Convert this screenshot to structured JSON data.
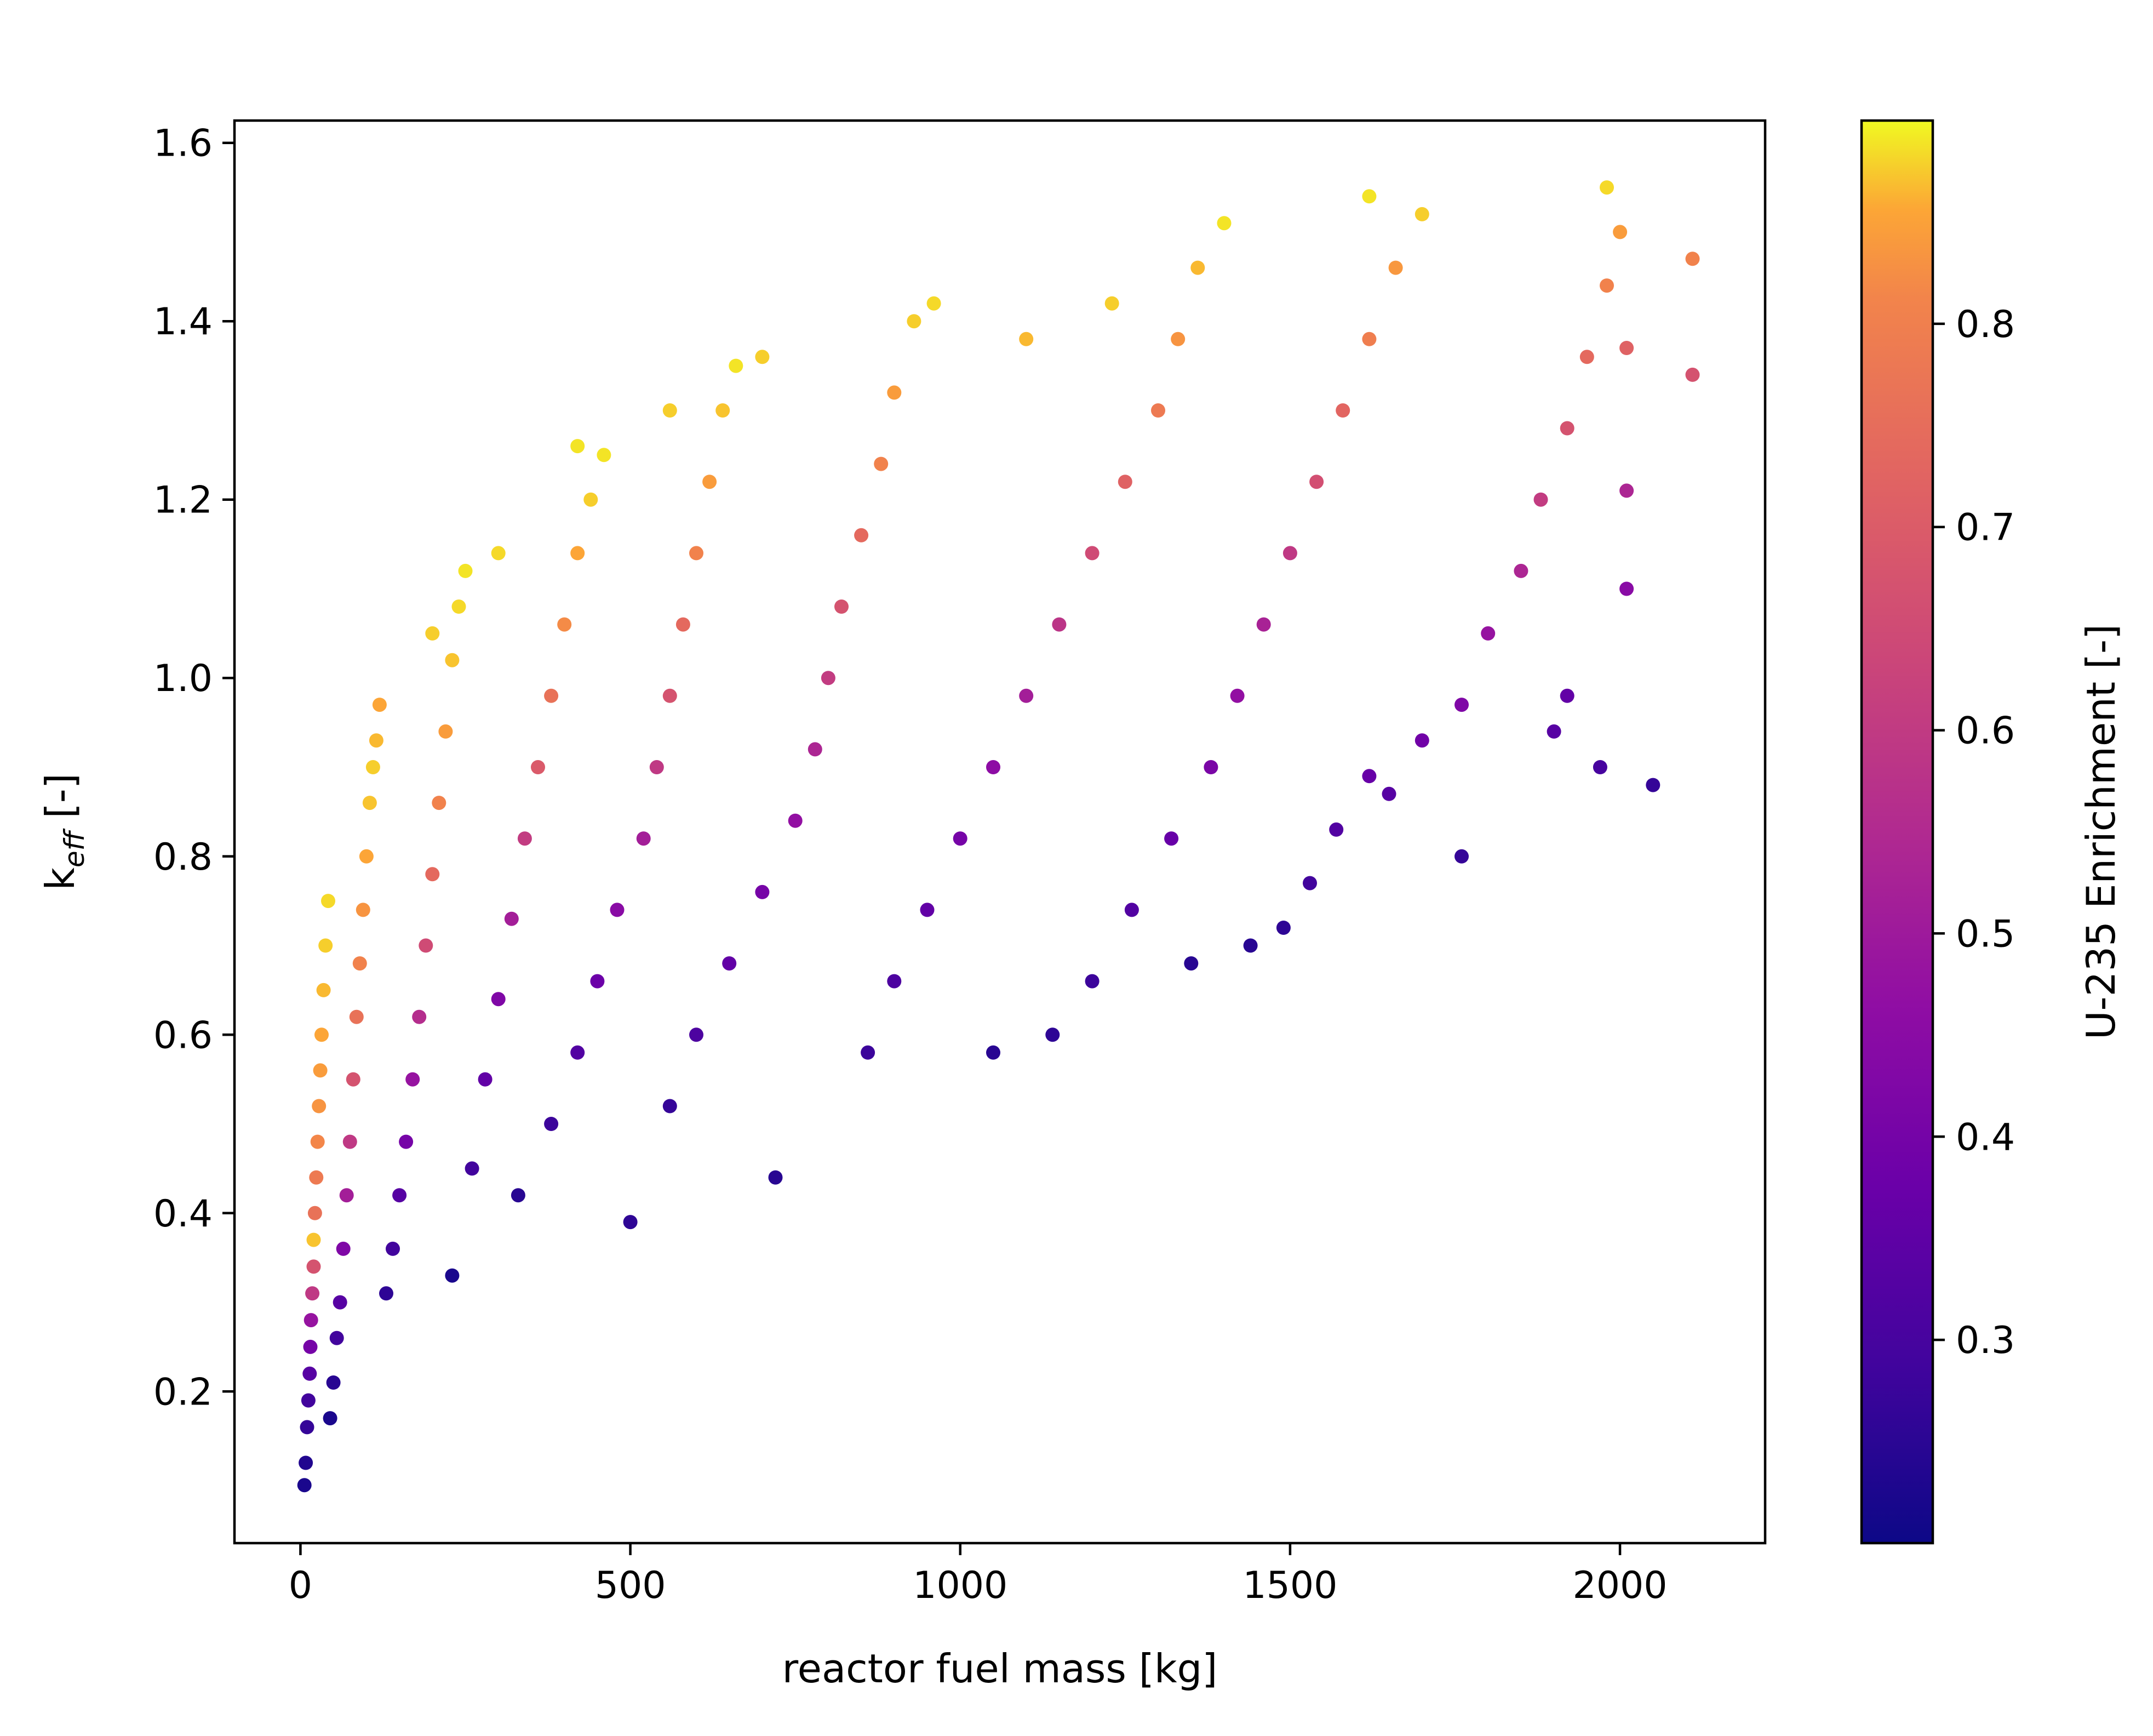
{
  "chart_data": {
    "type": "scatter",
    "title": "",
    "xlabel": "reactor fuel mass [kg]",
    "ylabel": {
      "base": "k",
      "subscript": "eff",
      "suffix": " [-]"
    },
    "xlim": [
      -100,
      2220
    ],
    "ylim": [
      0.03,
      1.625
    ],
    "xticks": [
      0,
      500,
      1000,
      1500,
      2000
    ],
    "xtick_labels": [
      "0",
      "500",
      "1000",
      "1500",
      "2000"
    ],
    "yticks": [
      0.2,
      0.4,
      0.6,
      0.8,
      1.0,
      1.2,
      1.4,
      1.6
    ],
    "ytick_labels": [
      "0.2",
      "0.4",
      "0.6",
      "0.8",
      "1.0",
      "1.2",
      "1.4",
      "1.6"
    ],
    "grid": false,
    "legend": "none",
    "colormap": "plasma",
    "colorbar": {
      "label": "U-235 Enrichment [-]",
      "range": [
        0.2,
        0.9
      ],
      "ticks": [
        0.3,
        0.4,
        0.5,
        0.6,
        0.7,
        0.8
      ],
      "tick_labels": [
        "0.3",
        "0.4",
        "0.5",
        "0.6",
        "0.7",
        "0.8"
      ]
    },
    "point_color_channel": "U-235 Enrichment",
    "points": [
      [
        6,
        0.095,
        0.22
      ],
      [
        8,
        0.12,
        0.23
      ],
      [
        10,
        0.16,
        0.26
      ],
      [
        12,
        0.19,
        0.28
      ],
      [
        14,
        0.22,
        0.32
      ],
      [
        15,
        0.25,
        0.38
      ],
      [
        16,
        0.28,
        0.45
      ],
      [
        18,
        0.31,
        0.55
      ],
      [
        20,
        0.34,
        0.62
      ],
      [
        20,
        0.37,
        0.85
      ],
      [
        22,
        0.4,
        0.7
      ],
      [
        24,
        0.44,
        0.72
      ],
      [
        26,
        0.48,
        0.75
      ],
      [
        28,
        0.52,
        0.78
      ],
      [
        30,
        0.56,
        0.8
      ],
      [
        32,
        0.6,
        0.82
      ],
      [
        35,
        0.65,
        0.84
      ],
      [
        38,
        0.7,
        0.86
      ],
      [
        42,
        0.75,
        0.87
      ],
      [
        45,
        0.17,
        0.22
      ],
      [
        50,
        0.21,
        0.24
      ],
      [
        55,
        0.26,
        0.28
      ],
      [
        60,
        0.3,
        0.32
      ],
      [
        65,
        0.36,
        0.4
      ],
      [
        70,
        0.42,
        0.48
      ],
      [
        75,
        0.48,
        0.55
      ],
      [
        80,
        0.55,
        0.62
      ],
      [
        85,
        0.62,
        0.7
      ],
      [
        90,
        0.68,
        0.74
      ],
      [
        95,
        0.74,
        0.78
      ],
      [
        100,
        0.8,
        0.82
      ],
      [
        105,
        0.86,
        0.85
      ],
      [
        110,
        0.9,
        0.86
      ],
      [
        115,
        0.93,
        0.84
      ],
      [
        120,
        0.97,
        0.82
      ],
      [
        130,
        0.31,
        0.25
      ],
      [
        140,
        0.36,
        0.28
      ],
      [
        150,
        0.42,
        0.32
      ],
      [
        160,
        0.48,
        0.38
      ],
      [
        170,
        0.55,
        0.45
      ],
      [
        180,
        0.62,
        0.52
      ],
      [
        190,
        0.7,
        0.6
      ],
      [
        200,
        0.78,
        0.68
      ],
      [
        210,
        0.86,
        0.74
      ],
      [
        220,
        0.94,
        0.8
      ],
      [
        230,
        1.02,
        0.85
      ],
      [
        240,
        1.08,
        0.87
      ],
      [
        250,
        1.12,
        0.88
      ],
      [
        230,
        0.33,
        0.22
      ],
      [
        260,
        0.45,
        0.28
      ],
      [
        280,
        0.55,
        0.34
      ],
      [
        300,
        0.64,
        0.4
      ],
      [
        320,
        0.73,
        0.48
      ],
      [
        340,
        0.82,
        0.56
      ],
      [
        360,
        0.9,
        0.64
      ],
      [
        380,
        0.98,
        0.7
      ],
      [
        400,
        1.06,
        0.76
      ],
      [
        420,
        1.14,
        0.82
      ],
      [
        440,
        1.2,
        0.86
      ],
      [
        460,
        1.25,
        0.88
      ],
      [
        330,
        0.42,
        0.24
      ],
      [
        380,
        0.5,
        0.27
      ],
      [
        420,
        0.58,
        0.31
      ],
      [
        450,
        0.66,
        0.36
      ],
      [
        480,
        0.74,
        0.42
      ],
      [
        500,
        0.39,
        0.25
      ],
      [
        520,
        0.82,
        0.48
      ],
      [
        540,
        0.9,
        0.55
      ],
      [
        560,
        0.98,
        0.62
      ],
      [
        580,
        1.06,
        0.68
      ],
      [
        600,
        1.14,
        0.74
      ],
      [
        620,
        1.22,
        0.8
      ],
      [
        640,
        1.3,
        0.85
      ],
      [
        660,
        1.35,
        0.88
      ],
      [
        560,
        0.52,
        0.26
      ],
      [
        600,
        0.6,
        0.3
      ],
      [
        650,
        0.68,
        0.34
      ],
      [
        700,
        0.76,
        0.38
      ],
      [
        720,
        0.44,
        0.24
      ],
      [
        750,
        0.84,
        0.44
      ],
      [
        780,
        0.92,
        0.5
      ],
      [
        800,
        1.0,
        0.56
      ],
      [
        820,
        1.08,
        0.62
      ],
      [
        850,
        1.16,
        0.68
      ],
      [
        880,
        1.24,
        0.74
      ],
      [
        900,
        1.32,
        0.8
      ],
      [
        930,
        1.4,
        0.86
      ],
      [
        860,
        0.58,
        0.27
      ],
      [
        900,
        0.66,
        0.3
      ],
      [
        950,
        0.74,
        0.34
      ],
      [
        1000,
        0.82,
        0.38
      ],
      [
        1050,
        0.58,
        0.24
      ],
      [
        1050,
        0.9,
        0.43
      ],
      [
        1100,
        0.98,
        0.48
      ],
      [
        1150,
        1.06,
        0.54
      ],
      [
        1200,
        1.14,
        0.6
      ],
      [
        1250,
        1.22,
        0.66
      ],
      [
        1300,
        1.3,
        0.72
      ],
      [
        1330,
        1.38,
        0.78
      ],
      [
        1360,
        1.46,
        0.84
      ],
      [
        1400,
        1.51,
        0.88
      ],
      [
        1140,
        0.6,
        0.25
      ],
      [
        1200,
        0.66,
        0.27
      ],
      [
        1260,
        0.74,
        0.31
      ],
      [
        1320,
        0.82,
        0.35
      ],
      [
        1350,
        0.68,
        0.24
      ],
      [
        1380,
        0.9,
        0.39
      ],
      [
        1420,
        0.98,
        0.44
      ],
      [
        1460,
        1.06,
        0.49
      ],
      [
        1500,
        1.14,
        0.55
      ],
      [
        1540,
        1.22,
        0.61
      ],
      [
        1580,
        1.3,
        0.67
      ],
      [
        1620,
        1.38,
        0.73
      ],
      [
        1660,
        1.46,
        0.79
      ],
      [
        1700,
        1.52,
        0.86
      ],
      [
        1440,
        0.7,
        0.24
      ],
      [
        1490,
        0.72,
        0.25
      ],
      [
        1530,
        0.77,
        0.28
      ],
      [
        1570,
        0.83,
        0.31
      ],
      [
        1620,
        0.89,
        0.35
      ],
      [
        1650,
        0.87,
        0.32
      ],
      [
        1700,
        0.93,
        0.37
      ],
      [
        1760,
        0.8,
        0.26
      ],
      [
        1760,
        0.97,
        0.4
      ],
      [
        1800,
        1.05,
        0.45
      ],
      [
        1850,
        1.12,
        0.5
      ],
      [
        1880,
        1.2,
        0.56
      ],
      [
        1920,
        1.28,
        0.62
      ],
      [
        1950,
        1.36,
        0.68
      ],
      [
        1980,
        1.44,
        0.74
      ],
      [
        2000,
        1.5,
        0.8
      ],
      [
        1980,
        1.55,
        0.87
      ],
      [
        1900,
        0.94,
        0.32
      ],
      [
        1920,
        0.98,
        0.34
      ],
      [
        1970,
        0.9,
        0.29
      ],
      [
        2010,
        1.1,
        0.42
      ],
      [
        2010,
        1.21,
        0.5
      ],
      [
        2010,
        1.37,
        0.66
      ],
      [
        2050,
        0.88,
        0.26
      ],
      [
        2110,
        1.34,
        0.62
      ],
      [
        2110,
        1.47,
        0.74
      ],
      [
        1620,
        1.54,
        0.88
      ],
      [
        1230,
        1.42,
        0.86
      ],
      [
        1100,
        1.38,
        0.84
      ],
      [
        960,
        1.42,
        0.87
      ],
      [
        700,
        1.36,
        0.86
      ],
      [
        560,
        1.3,
        0.86
      ],
      [
        420,
        1.26,
        0.88
      ],
      [
        300,
        1.14,
        0.87
      ],
      [
        200,
        1.05,
        0.86
      ]
    ]
  }
}
